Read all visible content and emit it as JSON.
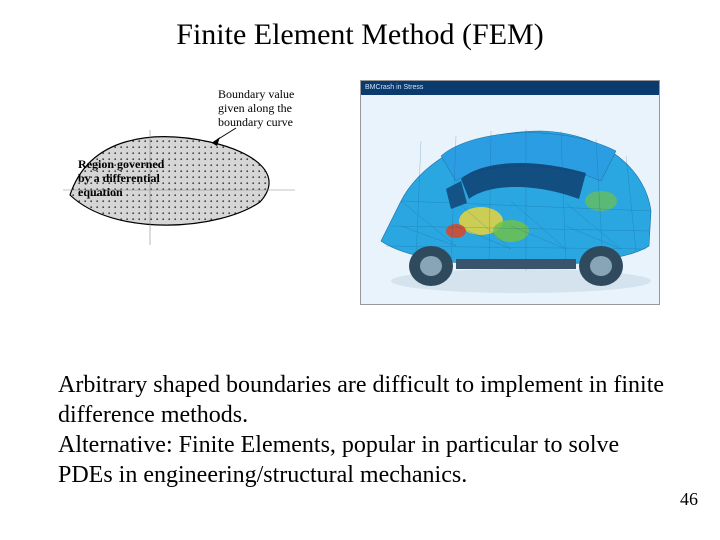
{
  "title": "Finite Element Method (FEM)",
  "left_diagram": {
    "label1": "Region governed\nby a differential\nequation",
    "label2": "Boundary value\ngiven along the\nboundary curve",
    "blob_fill": "#d6d6d6",
    "blob_stroke": "#000000",
    "dot_color": "#000000",
    "arrow_color": "#000000",
    "line_color": "#666666",
    "font_size": 12,
    "font_family": "Times New Roman"
  },
  "right_diagram": {
    "header_text": "BMCrash in Stress",
    "header_bg": "#0b3a6f",
    "sky_color": "#e9f3fb",
    "car_colors": {
      "body_high": "#2aa6e0",
      "body_mid": "#2b9de3",
      "window": "#0e3e6f",
      "wheel": "#2f4a5c",
      "hotspot_yellow": "#e8d33c",
      "hotspot_green": "#6fc24a",
      "hotspot_red": "#d24a2f",
      "underbody": "#3a556b",
      "chassis": "#88a5b7"
    }
  },
  "body_paragraph": "Arbitrary shaped boundaries are difficult to implement in finite difference methods.\nAlternative: Finite Elements, popular in particular to solve PDEs in engineering/structural mechanics.",
  "page_number": "46",
  "colors": {
    "background": "#ffffff",
    "text": "#000000"
  },
  "typography": {
    "title_fontsize": 30,
    "body_fontsize": 24,
    "pagenum_fontsize": 18,
    "font_family": "Times New Roman"
  }
}
